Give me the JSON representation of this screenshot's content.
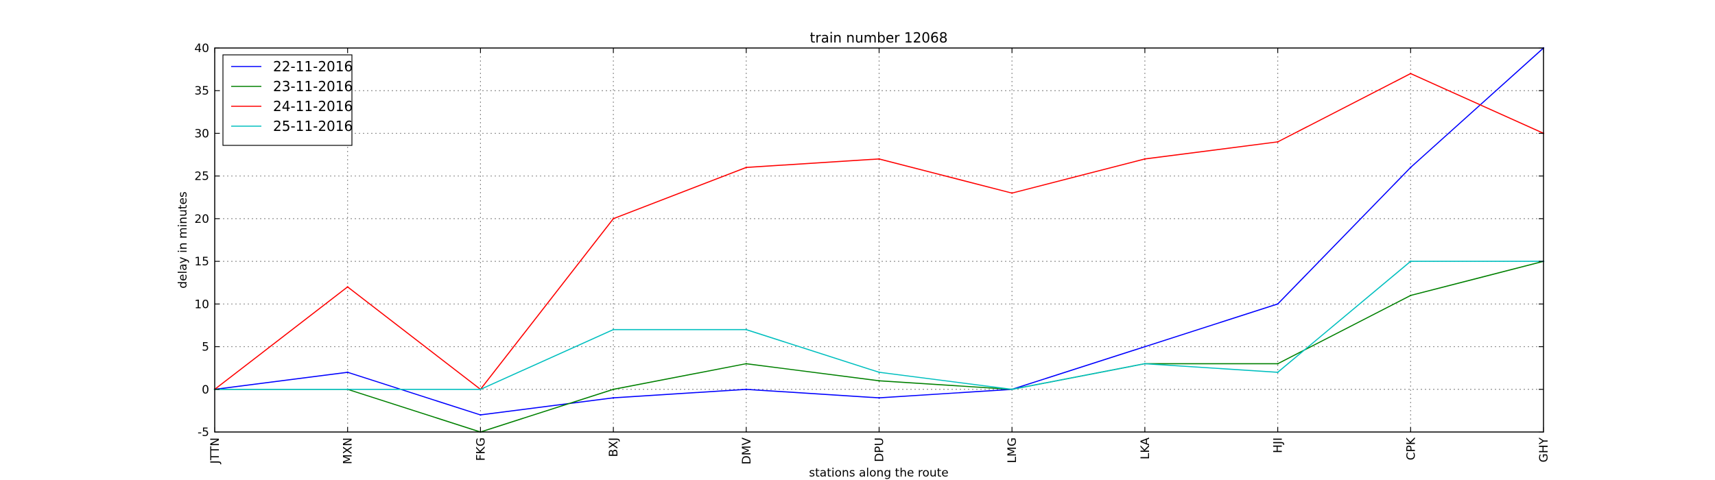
{
  "chart_data": {
    "type": "line",
    "title": "train number 12068",
    "xlabel": "stations along the route",
    "ylabel": "delay in minutes",
    "categories": [
      "JTTN",
      "MXN",
      "FKG",
      "BXJ",
      "DMV",
      "DPU",
      "LMG",
      "LKA",
      "HJI",
      "CPK",
      "GHY"
    ],
    "ylim": [
      -5,
      40
    ],
    "yticks": [
      -5,
      0,
      5,
      10,
      15,
      20,
      25,
      30,
      35,
      40
    ],
    "grid": true,
    "legend_position": "top-left",
    "series": [
      {
        "name": "22-11-2016",
        "color": "#0000ff",
        "values": [
          0,
          2,
          -3,
          -1,
          0,
          -1,
          0,
          5,
          10,
          26,
          40
        ]
      },
      {
        "name": "23-11-2016",
        "color": "#008000",
        "values": [
          0,
          0,
          -5,
          0,
          3,
          1,
          0,
          3,
          3,
          11,
          15
        ]
      },
      {
        "name": "24-11-2016",
        "color": "#ff0000",
        "values": [
          0,
          12,
          0,
          20,
          26,
          27,
          23,
          27,
          29,
          37,
          30
        ]
      },
      {
        "name": "25-11-2016",
        "color": "#00bfbf",
        "values": [
          0,
          0,
          0,
          7,
          7,
          2,
          0,
          3,
          2,
          15,
          15
        ]
      }
    ]
  }
}
